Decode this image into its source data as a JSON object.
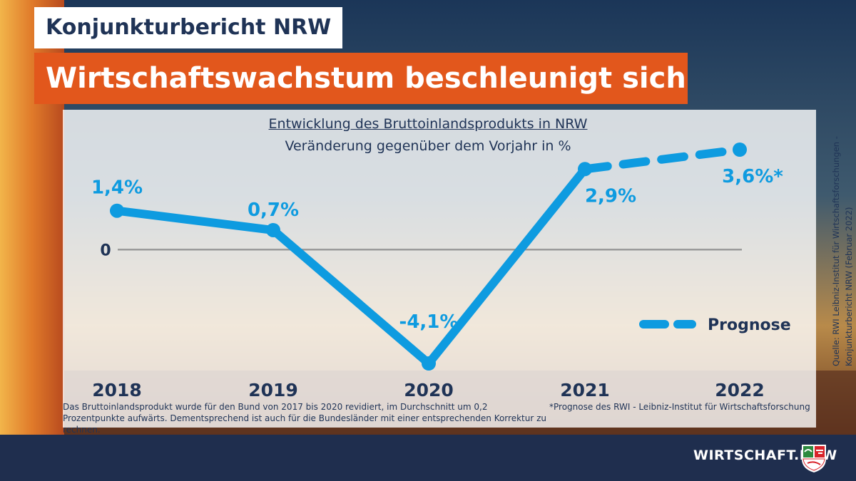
{
  "header": {
    "kicker": "Konjunkturbericht NRW",
    "headline": "Wirtschaftswachstum beschleunigt sich"
  },
  "colors": {
    "navy": "#1f3356",
    "orange": "#e2571c",
    "line_blue": "#0e9be0",
    "zero_line": "#9a9a9a",
    "footer": "#1f2e4e"
  },
  "chart_data": {
    "type": "line",
    "title": "Entwicklung des Bruttoinlandsprodukts in NRW",
    "subtitle": "Veränderung gegenüber dem Vorjahr in %",
    "categories": [
      "2018",
      "2019",
      "2020",
      "2021",
      "2022"
    ],
    "series": [
      {
        "values": [
          1.4,
          0.7,
          -4.1,
          2.9,
          null
        ],
        "style": "solid"
      },
      {
        "name": "Prognose",
        "values": [
          null,
          null,
          null,
          2.9,
          3.6
        ],
        "style": "dashed"
      }
    ],
    "data_labels": [
      "1,4%",
      "0,7%",
      "-4,1%",
      "2,9%",
      "3,6%*"
    ],
    "zero_label": "0",
    "legend": {
      "label": "Prognose",
      "position": "bottom-right"
    },
    "ylim": [
      -4.1,
      3.6
    ],
    "grid": false
  },
  "notes": {
    "left": "Das Bruttoinlandsprodukt wurde für den Bund von 2017 bis 2020 revidiert, im Durchschnitt um 0,2 Prozentpunkte aufwärts. Dementsprechend ist auch für die Bundesländer mit einer entsprechenden Korrektur zu rechnen.",
    "right": "*Prognose des RWI - Leibniz-Institut für Wirtschaftsforschung"
  },
  "source": {
    "line1": "Quelle:  RWI Leibniz-Institut für Wirtschaftsforschungen -",
    "line2": "Konjunkturbericht NRW (Februar 2022)"
  },
  "footer": {
    "brand": "WIRTSCHAFT.NRW",
    "crest_icon": "nrw-coat-of-arms-icon"
  }
}
